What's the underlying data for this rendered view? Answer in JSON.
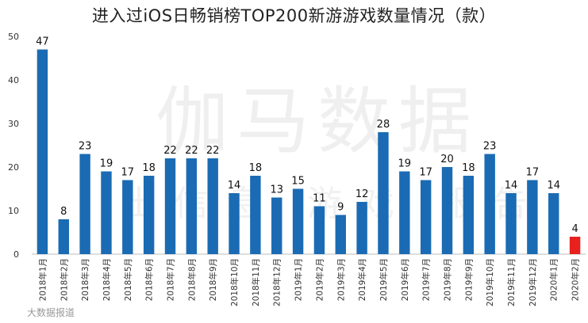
{
  "watermarks": {
    "main": "伽马数据",
    "sub": "出信息 游戏 报告",
    "corner": "大数据报道"
  },
  "chart_data": {
    "type": "bar",
    "title": "进入过iOS日畅销榜TOP200新游游戏数量情况（款）",
    "xlabel": "",
    "ylabel": "",
    "ylim": [
      0,
      50
    ],
    "yticks": [
      0,
      10,
      20,
      30,
      40,
      50
    ],
    "grid": false,
    "legend": "none",
    "categories": [
      "2018年1月",
      "2018年2月",
      "2018年3月",
      "2018年4月",
      "2018年5月",
      "2018年6月",
      "2018年7月",
      "2018年8月",
      "2018年9月",
      "2018年10月",
      "2018年11月",
      "2018年12月",
      "2019年1月",
      "2019年2月",
      "2019年3月",
      "2019年4月",
      "2019年5月",
      "2019年6月",
      "2019年7月",
      "2019年8月",
      "2019年9月",
      "2019年10月",
      "2019年11月",
      "2019年12月",
      "2020年1月",
      "2020年2月"
    ],
    "values": [
      47,
      8,
      23,
      19,
      17,
      18,
      22,
      22,
      22,
      14,
      18,
      13,
      15,
      11,
      9,
      12,
      28,
      19,
      17,
      20,
      18,
      23,
      14,
      17,
      14,
      4
    ],
    "colors": {
      "default": "#1a6bb3",
      "highlight": "#e8201e"
    },
    "highlight_index": 25
  }
}
